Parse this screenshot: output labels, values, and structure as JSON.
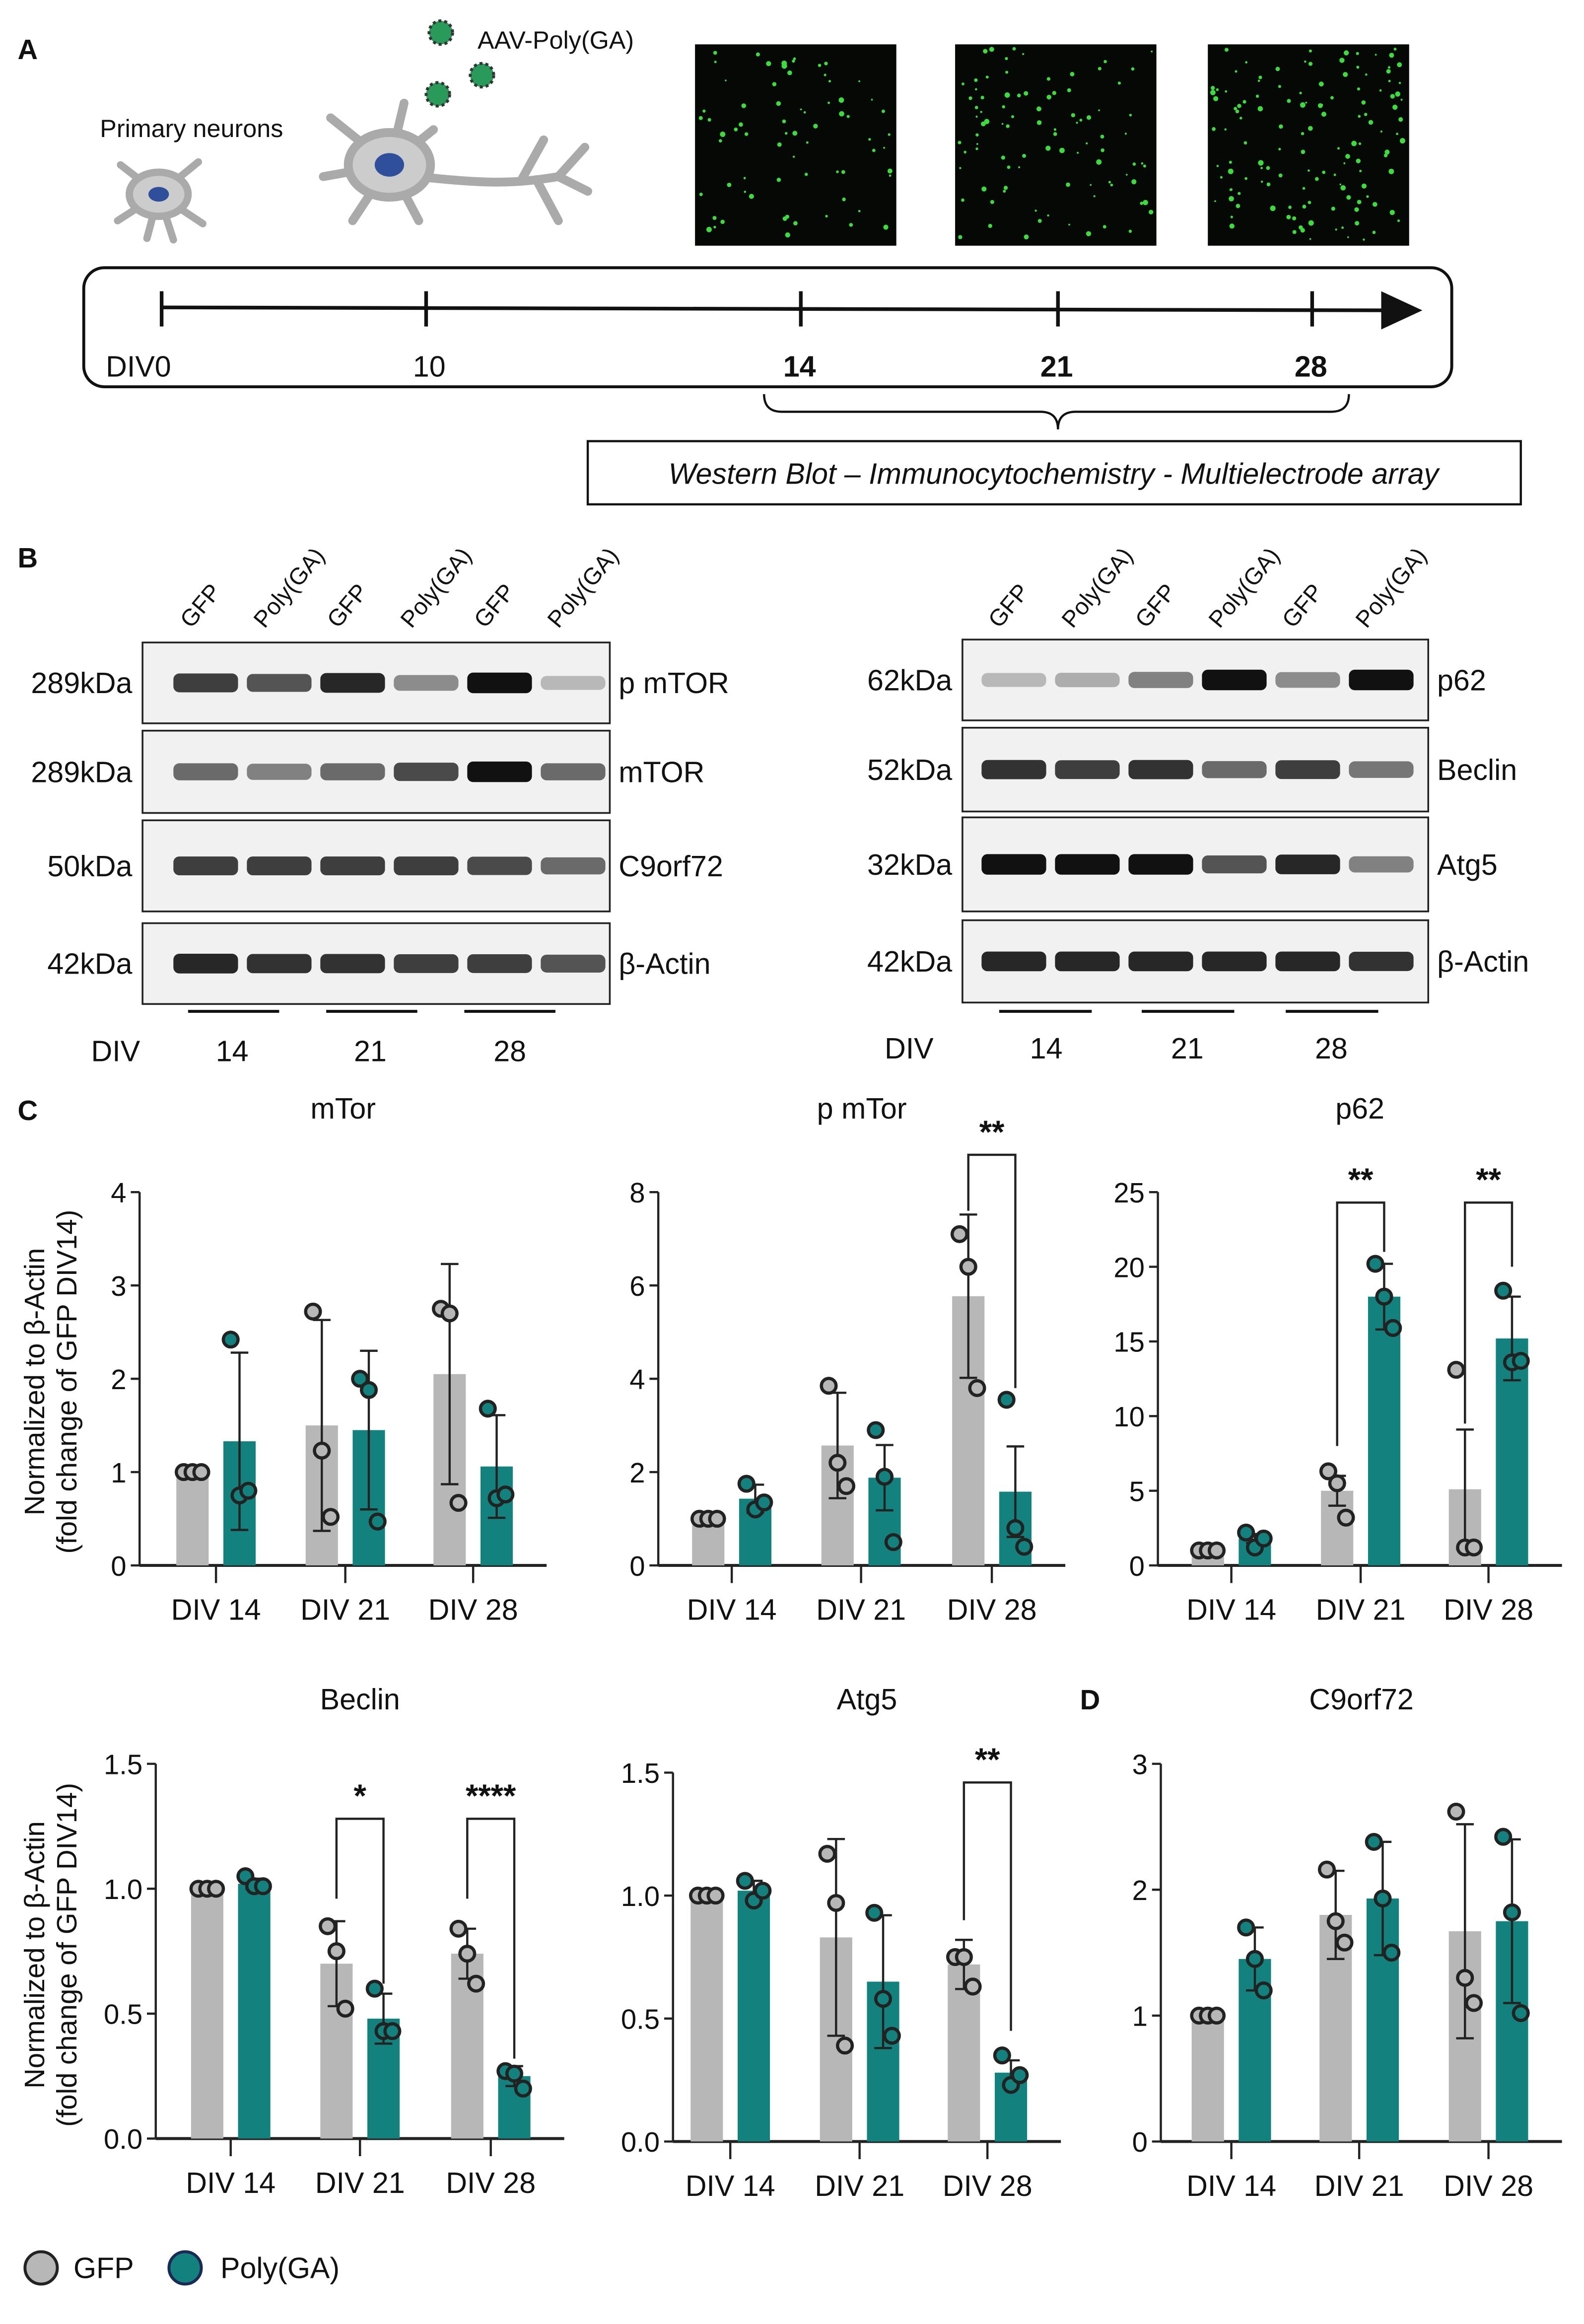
{
  "colors": {
    "gfp": "#b7b7b7",
    "polyga": "#13827e",
    "gfp_point": "#b7b7b7",
    "polyga_point": "#13827e"
  },
  "panel_a": {
    "label": "A",
    "primary_neurons": "Primary neurons",
    "virus": "AAV-Poly(GA)",
    "timeline": [
      "DIV0",
      "10",
      "14",
      "21",
      "28"
    ],
    "methods": "Western Blot – Immunocytochemistry - Multielectrode array"
  },
  "panel_b": {
    "label": "B",
    "lanes": [
      "GFP",
      "Poly(GA)",
      "GFP",
      "Poly(GA)",
      "GFP",
      "Poly(GA)"
    ],
    "div_label": "DIV",
    "div_values": [
      "14",
      "21",
      "28"
    ],
    "left_blot": [
      {
        "kda": "289kDa",
        "protein": "p mTOR"
      },
      {
        "kda": "289kDa",
        "protein": "mTOR"
      },
      {
        "kda": "50kDa",
        "protein": "C9orf72"
      },
      {
        "kda": "42kDa",
        "protein": "β-Actin"
      }
    ],
    "right_blot": [
      {
        "kda": "62kDa",
        "protein": "p62"
      },
      {
        "kda": "52kDa",
        "protein": "Beclin"
      },
      {
        "kda": "32kDa",
        "protein": "Atg5"
      },
      {
        "kda": "42kDa",
        "protein": "β-Actin"
      }
    ]
  },
  "panel_c": {
    "label": "C"
  },
  "panel_d": {
    "label": "D"
  },
  "ylabel_line1": "Normalized to β-Actin",
  "ylabel_line2": "(fold change of GFP DIV14)",
  "legend": [
    {
      "name": "GFP"
    },
    {
      "name": "Poly(GA)"
    }
  ],
  "chart_data": [
    {
      "type": "bar",
      "title": "mTor",
      "categories": [
        "DIV 14",
        "DIV 21",
        "DIV 28"
      ],
      "ylim": [
        0,
        4
      ],
      "yticks": [
        "0",
        "1",
        "2",
        "3",
        "4"
      ],
      "series": [
        {
          "name": "GFP",
          "values": [
            1.0,
            1.5,
            2.05
          ],
          "sd": [
            0,
            1.13,
            1.18
          ],
          "points": [
            [
              1,
              1,
              1
            ],
            [
              2.72,
              1.23,
              0.52
            ],
            [
              2.75,
              2.7,
              0.67
            ]
          ]
        },
        {
          "name": "Poly(GA)",
          "values": [
            1.33,
            1.45,
            1.06
          ],
          "sd": [
            0.95,
            0.85,
            0.55
          ],
          "points": [
            [
              2.42,
              0.75,
              0.8
            ],
            [
              2.0,
              1.88,
              0.47
            ],
            [
              1.68,
              0.72,
              0.76
            ]
          ]
        }
      ],
      "significance": []
    },
    {
      "type": "bar",
      "title": "p mTor",
      "categories": [
        "DIV 14",
        "DIV 21",
        "DIV 28"
      ],
      "ylim": [
        0,
        8
      ],
      "yticks": [
        "0",
        "2",
        "4",
        "6",
        "8"
      ],
      "series": [
        {
          "name": "GFP",
          "values": [
            1.0,
            2.57,
            5.77
          ],
          "sd": [
            0,
            1.13,
            1.75
          ],
          "points": [
            [
              1,
              1,
              1
            ],
            [
              3.85,
              2.2,
              1.7
            ],
            [
              7.1,
              6.4,
              3.8
            ]
          ]
        },
        {
          "name": "Poly(GA)",
          "values": [
            1.43,
            1.88,
            1.58
          ],
          "sd": [
            0.3,
            0.7,
            0.97
          ],
          "points": [
            [
              1.75,
              1.2,
              1.35
            ],
            [
              2.9,
              1.9,
              0.5
            ],
            [
              3.55,
              0.8,
              0.4
            ]
          ]
        }
      ],
      "significance": [
        {
          "group": 2,
          "label": "**",
          "level": 8.8,
          "left_drop": 7.6,
          "right_drop": 3.8
        }
      ]
    },
    {
      "type": "bar",
      "title": "p62",
      "categories": [
        "DIV 14",
        "DIV 21",
        "DIV 28"
      ],
      "ylim": [
        0,
        25
      ],
      "yticks": [
        "0",
        "5",
        "10",
        "15",
        "20",
        "25"
      ],
      "series": [
        {
          "name": "GFP",
          "values": [
            1.0,
            5.0,
            5.1
          ],
          "sd": [
            0,
            1.0,
            4.0
          ],
          "points": [
            [
              1,
              1,
              1
            ],
            [
              6.3,
              5.5,
              3.2
            ],
            [
              13.1,
              1.2,
              1.2
            ]
          ]
        },
        {
          "name": "Poly(GA)",
          "values": [
            1.8,
            18.0,
            15.2
          ],
          "sd": [
            0.3,
            2.2,
            2.8
          ],
          "points": [
            [
              2.2,
              1.2,
              1.8
            ],
            [
              20.2,
              18.0,
              15.9
            ],
            [
              18.4,
              13.6,
              13.7
            ]
          ]
        }
      ],
      "significance": [
        {
          "group": 1,
          "label": "**",
          "level": 24.3,
          "left_drop": 8.0,
          "right_drop": 21.0
        },
        {
          "group": 2,
          "label": "**",
          "level": 24.3,
          "left_drop": 9.5,
          "right_drop": 20.0
        }
      ]
    },
    {
      "type": "bar",
      "title": "Beclin",
      "categories": [
        "DIV 14",
        "DIV 21",
        "DIV 28"
      ],
      "ylim": [
        0,
        1.5
      ],
      "yticks": [
        "0.0",
        "0.5",
        "1.0",
        "1.5"
      ],
      "series": [
        {
          "name": "GFP",
          "values": [
            1.0,
            0.7,
            0.74
          ],
          "sd": [
            0,
            0.17,
            0.1
          ],
          "points": [
            [
              1,
              1,
              1
            ],
            [
              0.85,
              0.75,
              0.52
            ],
            [
              0.84,
              0.74,
              0.62
            ]
          ]
        },
        {
          "name": "Poly(GA)",
          "values": [
            1.02,
            0.48,
            0.25
          ],
          "sd": [
            0.02,
            0.1,
            0.04
          ],
          "points": [
            [
              1.05,
              1.01,
              1.01
            ],
            [
              0.6,
              0.43,
              0.43
            ],
            [
              0.27,
              0.26,
              0.2
            ]
          ]
        }
      ],
      "significance": [
        {
          "group": 1,
          "label": "*",
          "level": 1.28,
          "left_drop": 0.96,
          "right_drop": 0.62
        },
        {
          "group": 2,
          "label": "****",
          "level": 1.28,
          "left_drop": 0.96,
          "right_drop": 0.32
        }
      ]
    },
    {
      "type": "bar",
      "title": "Atg5",
      "categories": [
        "DIV 14",
        "DIV 21",
        "DIV 28"
      ],
      "ylim": [
        0,
        1.5
      ],
      "yticks": [
        "0.0",
        "0.5",
        "1.0",
        "1.5"
      ],
      "series": [
        {
          "name": "GFP",
          "values": [
            1.0,
            0.83,
            0.72
          ],
          "sd": [
            0,
            0.4,
            0.1
          ],
          "points": [
            [
              1,
              1,
              1
            ],
            [
              1.17,
              0.97,
              0.39
            ],
            [
              0.75,
              0.75,
              0.63
            ]
          ]
        },
        {
          "name": "Poly(GA)",
          "values": [
            1.02,
            0.65,
            0.28
          ],
          "sd": [
            0.04,
            0.27,
            0.05
          ],
          "points": [
            [
              1.06,
              0.98,
              1.02
            ],
            [
              0.93,
              0.58,
              0.43
            ],
            [
              0.35,
              0.23,
              0.27
            ]
          ]
        }
      ],
      "significance": [
        {
          "group": 2,
          "label": "**",
          "level": 1.46,
          "left_drop": 0.9,
          "right_drop": 0.45
        }
      ]
    },
    {
      "type": "bar",
      "title": "C9orf72",
      "categories": [
        "DIV 14",
        "DIV 21",
        "DIV 28"
      ],
      "ylim": [
        0,
        3
      ],
      "yticks": [
        "0",
        "1",
        "2",
        "3"
      ],
      "series": [
        {
          "name": "GFP",
          "values": [
            1.0,
            1.8,
            1.67
          ],
          "sd": [
            0,
            0.35,
            0.85
          ],
          "points": [
            [
              1,
              1,
              1
            ],
            [
              2.16,
              1.75,
              1.58
            ],
            [
              2.62,
              1.3,
              1.1
            ]
          ]
        },
        {
          "name": "Poly(GA)",
          "values": [
            1.45,
            1.93,
            1.75
          ],
          "sd": [
            0.25,
            0.45,
            0.65
          ],
          "points": [
            [
              1.7,
              1.45,
              1.2
            ],
            [
              2.38,
              1.93,
              1.5
            ],
            [
              2.42,
              1.82,
              1.02
            ]
          ]
        }
      ],
      "significance": []
    }
  ]
}
